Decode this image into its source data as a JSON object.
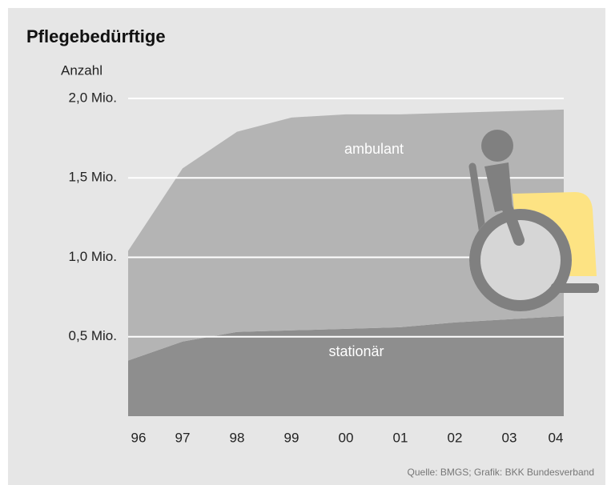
{
  "chart_data": {
    "type": "stacked_area",
    "title": "Pflegebedürftige",
    "y_axis_label": "Anzahl",
    "categories": [
      "96",
      "97",
      "98",
      "99",
      "00",
      "01",
      "02",
      "03",
      "04"
    ],
    "series": [
      {
        "name": "stationär",
        "color": "#8e8e8e",
        "values": [
          0.35,
          0.47,
          0.53,
          0.54,
          0.55,
          0.56,
          0.59,
          0.61,
          0.63
        ]
      },
      {
        "name": "ambulant",
        "color": "#b4b4b4",
        "values": [
          0.69,
          1.09,
          1.26,
          1.34,
          1.35,
          1.34,
          1.32,
          1.31,
          1.3
        ]
      }
    ],
    "ylim": [
      0,
      2.0
    ],
    "yticks": [
      {
        "value": 0.5,
        "label": "0,5 Mio."
      },
      {
        "value": 1.0,
        "label": "1,0 Mio."
      },
      {
        "value": 1.5,
        "label": "1,5 Mio."
      },
      {
        "value": 2.0,
        "label": "2,0 Mio."
      }
    ],
    "grid": true,
    "source": "Quelle: BMGS; Grafik: BKK Bundesverband"
  }
}
